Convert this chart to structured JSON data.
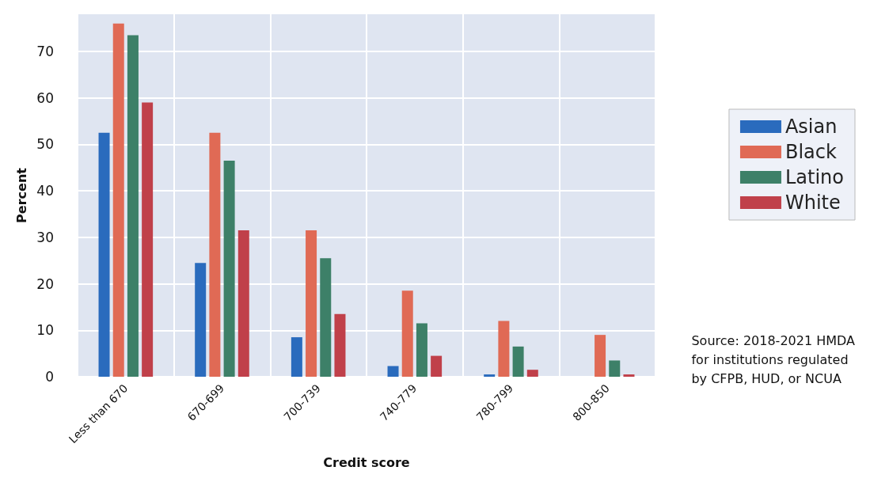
{
  "chart_data": {
    "type": "bar",
    "xlabel": "Credit score",
    "ylabel": "Percent",
    "categories": [
      "Less than 670",
      "670-699",
      "700-739",
      "740-779",
      "780-799",
      "800-850"
    ],
    "series": [
      {
        "name": "Asian",
        "color": "#2a6bbd",
        "values": [
          52.5,
          24.5,
          8.5,
          2.3,
          0.5,
          0
        ]
      },
      {
        "name": "Black",
        "color": "#e06a55",
        "values": [
          76,
          52.5,
          31.5,
          18.5,
          12,
          9
        ]
      },
      {
        "name": "Latino",
        "color": "#3d8068",
        "values": [
          73.5,
          46.5,
          25.5,
          11.5,
          6.5,
          3.5
        ]
      },
      {
        "name": "White",
        "color": "#c0404a",
        "values": [
          59,
          31.5,
          13.5,
          4.5,
          1.5,
          0.5
        ]
      }
    ],
    "ylim": [
      0,
      78
    ],
    "yticks": [
      0,
      10,
      20,
      30,
      40,
      50,
      60,
      70
    ],
    "grid": true,
    "legend": "right",
    "annotations": [
      "Source: 2018-2021 HMDA\nfor institutions regulated\nby CFPB, HUD, or NCUA"
    ]
  }
}
